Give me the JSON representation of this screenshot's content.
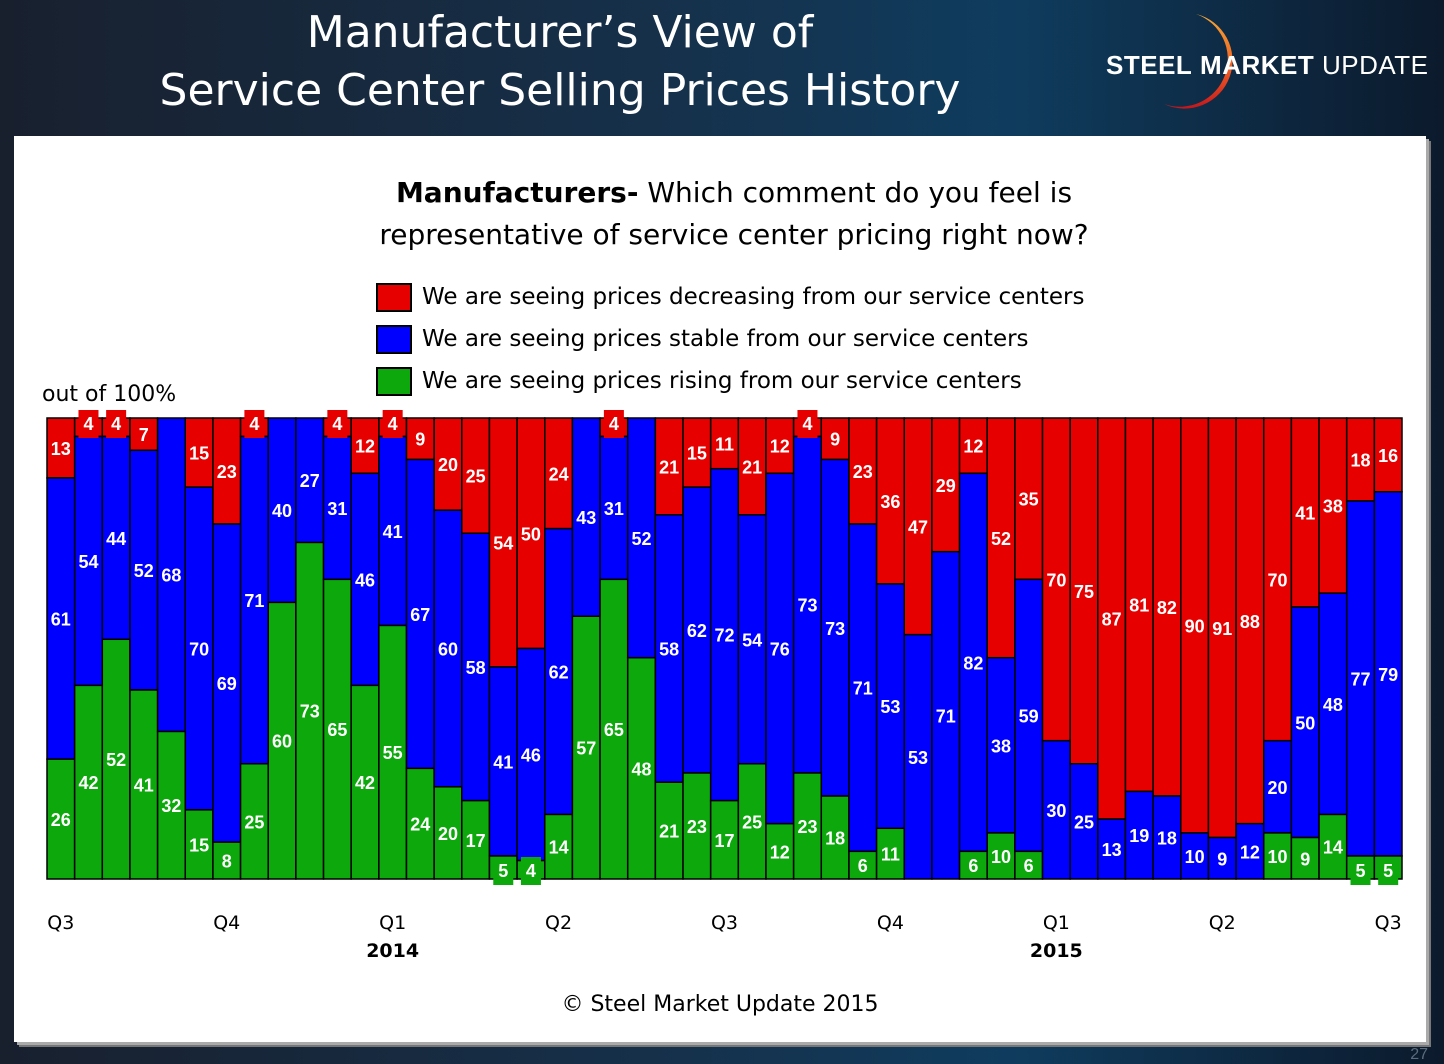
{
  "slide": {
    "title_line1": "Manufacturer’s View of",
    "title_line2": "Service Center Selling Prices History",
    "logo": {
      "steel": "STEEL",
      "market": "MARKET",
      "update": "UPDATE"
    },
    "page_number": "27",
    "copyright": "© Steel Market Update 2015"
  },
  "chart_data": {
    "type": "bar",
    "stacked": true,
    "title_bold": "Manufacturers-",
    "title_rest": " Which comment do you feel is",
    "title_line2": "representative of service center pricing right now?",
    "ylabel": "out of 100%",
    "ylim": [
      0,
      100
    ],
    "legend_position": "top-center",
    "series": [
      {
        "name": "We are seeing prices decreasing from our service centers",
        "color": "#e60000",
        "values": [
          13,
          4,
          4,
          7,
          0,
          15,
          23,
          4,
          0,
          0,
          4,
          12,
          4,
          9,
          20,
          25,
          54,
          50,
          24,
          0,
          4,
          0,
          21,
          15,
          11,
          21,
          12,
          4,
          9,
          23,
          36,
          47,
          29,
          12,
          52,
          35,
          70,
          75,
          87,
          81,
          82,
          90,
          91,
          88,
          70,
          41,
          38,
          18,
          16
        ]
      },
      {
        "name": "We are seeing prices stable from our service centers",
        "color": "#0000ff",
        "values": [
          61,
          54,
          44,
          52,
          68,
          70,
          69,
          71,
          40,
          27,
          31,
          46,
          41,
          67,
          60,
          58,
          41,
          46,
          62,
          43,
          31,
          52,
          58,
          62,
          72,
          54,
          76,
          73,
          73,
          71,
          53,
          53,
          71,
          82,
          38,
          59,
          30,
          25,
          13,
          19,
          18,
          10,
          9,
          12,
          20,
          50,
          48,
          77,
          79
        ]
      },
      {
        "name": "We are seeing prices rising from our service centers",
        "color": "#0ca80c",
        "values": [
          26,
          42,
          52,
          41,
          32,
          15,
          8,
          25,
          60,
          73,
          65,
          42,
          55,
          24,
          20,
          17,
          5,
          4,
          14,
          57,
          65,
          48,
          21,
          23,
          17,
          25,
          12,
          23,
          18,
          6,
          11,
          0,
          0,
          6,
          10,
          6,
          0,
          0,
          0,
          0,
          0,
          0,
          0,
          0,
          10,
          9,
          14,
          5,
          5
        ]
      }
    ],
    "quarter_ticks": [
      {
        "label": "Q3",
        "index": 0
      },
      {
        "label": "Q4",
        "index": 6
      },
      {
        "label": "Q1",
        "index": 12
      },
      {
        "label": "Q2",
        "index": 18
      },
      {
        "label": "Q3",
        "index": 24
      },
      {
        "label": "Q4",
        "index": 30
      },
      {
        "label": "Q1",
        "index": 36
      },
      {
        "label": "Q2",
        "index": 42
      },
      {
        "label": "Q3",
        "index": 48
      }
    ],
    "year_labels": [
      {
        "label": "2014",
        "index": 12
      },
      {
        "label": "2015",
        "index": 36
      }
    ]
  }
}
